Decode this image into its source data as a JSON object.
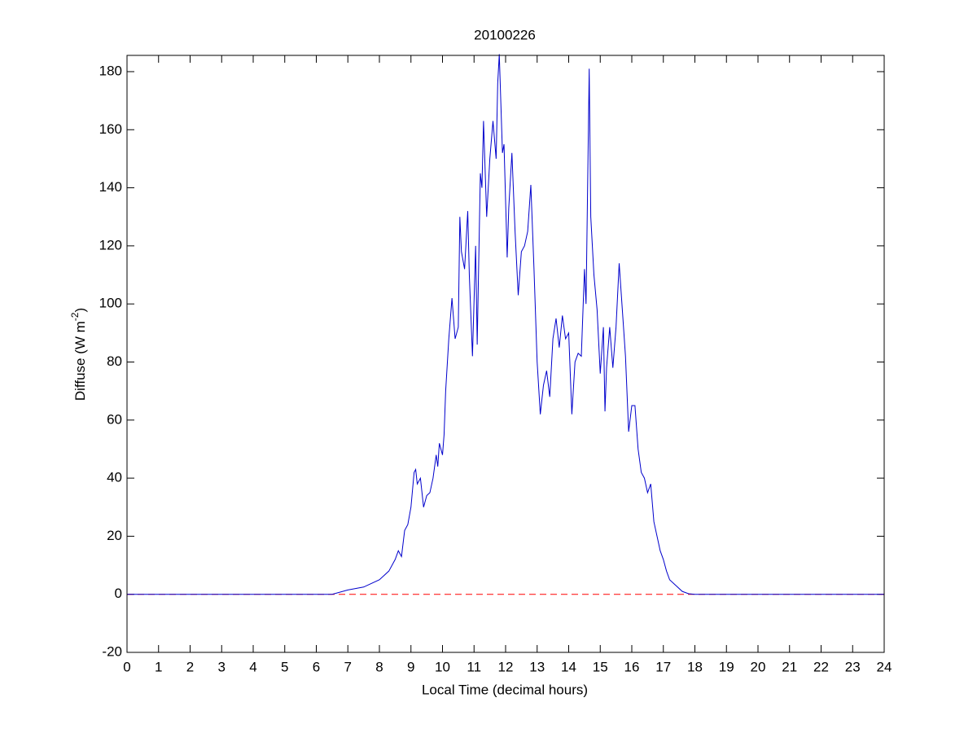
{
  "chart_data": {
    "type": "line",
    "title": "20100226",
    "xlabel": "Local Time (decimal hours)",
    "ylabel": [
      "Diffuse (W m",
      "-2",
      ")"
    ],
    "x": [
      0,
      6.5,
      7.0,
      7.5,
      8.0,
      8.3,
      8.5,
      8.6,
      8.7,
      8.8,
      8.9,
      9.0,
      9.1,
      9.15,
      9.2,
      9.3,
      9.4,
      9.5,
      9.6,
      9.7,
      9.8,
      9.85,
      9.9,
      10.0,
      10.05,
      10.1,
      10.2,
      10.3,
      10.4,
      10.5,
      10.55,
      10.6,
      10.7,
      10.8,
      10.85,
      10.95,
      11.05,
      11.1,
      11.2,
      11.25,
      11.3,
      11.4,
      11.5,
      11.6,
      11.7,
      11.75,
      11.8,
      11.9,
      11.95,
      12.05,
      12.1,
      12.2,
      12.3,
      12.4,
      12.5,
      12.6,
      12.7,
      12.8,
      12.9,
      13.0,
      13.1,
      13.2,
      13.3,
      13.4,
      13.5,
      13.6,
      13.7,
      13.8,
      13.9,
      14.0,
      14.1,
      14.2,
      14.3,
      14.4,
      14.5,
      14.55,
      14.65,
      14.7,
      14.8,
      14.9,
      15.0,
      15.1,
      15.15,
      15.2,
      15.3,
      15.4,
      15.5,
      15.6,
      15.7,
      15.8,
      15.9,
      16.0,
      16.1,
      16.2,
      16.3,
      16.4,
      16.5,
      16.6,
      16.7,
      16.8,
      16.9,
      17.0,
      17.1,
      17.2,
      17.4,
      17.6,
      17.8,
      18.0,
      24
    ],
    "series": [
      {
        "color": "#0000cc",
        "values": [
          0,
          0,
          1.5,
          2.5,
          5,
          8,
          12,
          15,
          13,
          22,
          24,
          30,
          42,
          43,
          38,
          40,
          30,
          34,
          35,
          40,
          48,
          44,
          52,
          48,
          55,
          70,
          88,
          102,
          88,
          92,
          130,
          118,
          112,
          132,
          110,
          82,
          120,
          86,
          145,
          140,
          163,
          130,
          150,
          163,
          150,
          176,
          186,
          152,
          155,
          116,
          133,
          152,
          125,
          103,
          118,
          120,
          125,
          141,
          112,
          80,
          62,
          72,
          77,
          68,
          88,
          95,
          85,
          96,
          88,
          90,
          62,
          80,
          83,
          82,
          112,
          100,
          181,
          130,
          110,
          98,
          76,
          92,
          63,
          78,
          92,
          78,
          92,
          114,
          98,
          82,
          56,
          65,
          65,
          50,
          42,
          40,
          35,
          38,
          25,
          20,
          15,
          12,
          8,
          5,
          3,
          1,
          0.2,
          0,
          0
        ]
      }
    ],
    "hline": {
      "y": 0,
      "color": "#ff0000",
      "dash": true
    },
    "xlim": [
      0,
      24
    ],
    "xticks": [
      0,
      1,
      2,
      3,
      4,
      5,
      6,
      7,
      8,
      9,
      10,
      11,
      12,
      13,
      14,
      15,
      16,
      17,
      18,
      19,
      20,
      21,
      22,
      23,
      24
    ],
    "ylim": [
      -20,
      185.6
    ],
    "yticks": [
      -20,
      0,
      20,
      40,
      60,
      80,
      100,
      120,
      140,
      160,
      180
    ],
    "grid": false
  }
}
